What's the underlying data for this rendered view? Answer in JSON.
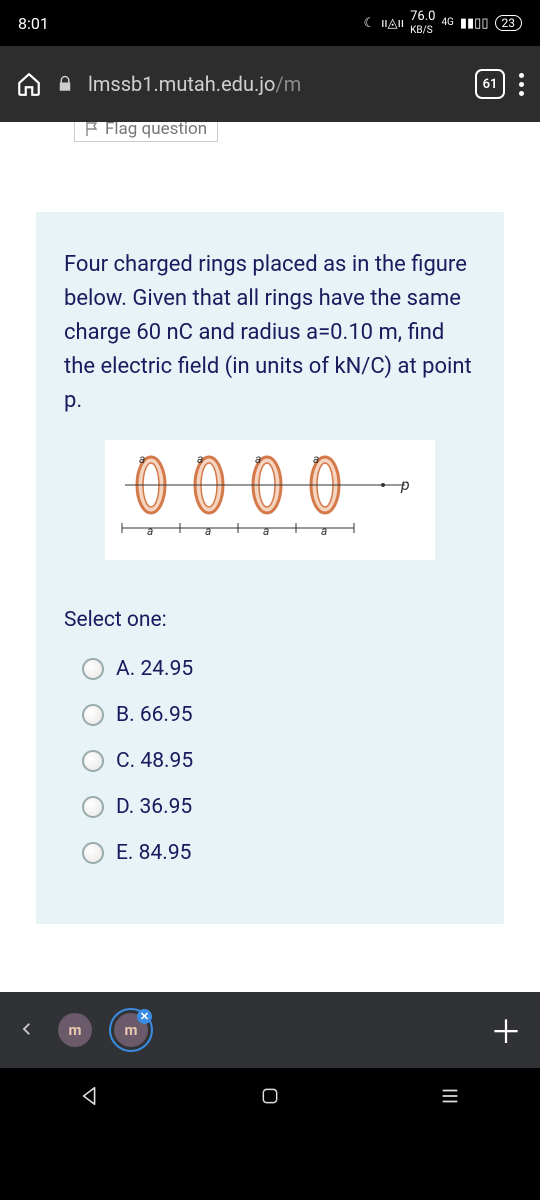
{
  "statusbar": {
    "time": "8:01",
    "data_rate": "76.0",
    "data_unit": "KB/S",
    "net": "4G",
    "battery": "23"
  },
  "browser": {
    "host": "lmssb1.mutah.edu.jo",
    "path": "/m",
    "tabs": "61"
  },
  "flag": {
    "label": "Flag question"
  },
  "question": {
    "text": "Four charged rings placed as in the figure below.  Given that all rings have the same charge 60 nC and radius a=0.10 m, find the electric field (in units of kN/C) at point p.",
    "select_label": "Select one:",
    "options": [
      {
        "label": "A. 24.95"
      },
      {
        "label": "B. 66.95"
      },
      {
        "label": "C. 48.95"
      },
      {
        "label": "D. 36.95"
      },
      {
        "label": "E. 84.95"
      }
    ],
    "figure": {
      "ring_count": 4,
      "ring_label": "a",
      "axis_label": "a",
      "point_label": "p",
      "ring_fill": "#f5d5c0",
      "ring_stroke": "#d47a4a",
      "ring_inner": "#ffffff"
    }
  },
  "colors": {
    "text": "#1a1a5e",
    "card_bg": "#e7f3f6"
  },
  "bottom": {
    "tab_letter": "m"
  }
}
